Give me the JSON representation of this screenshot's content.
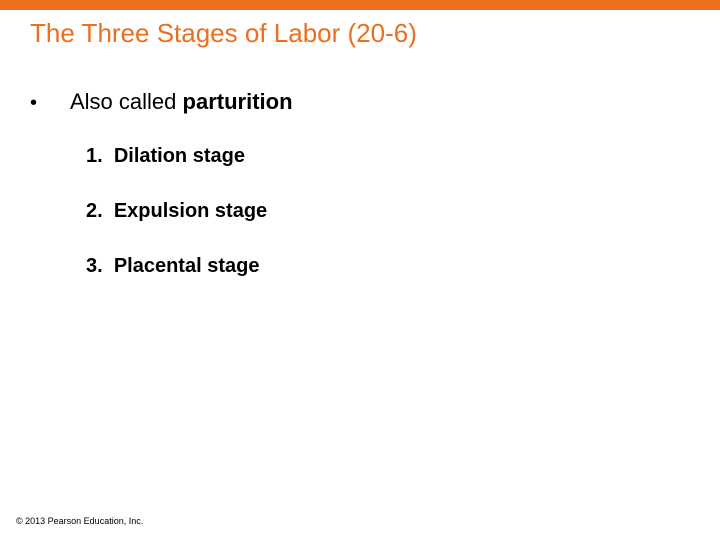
{
  "accent_color": "#ec6f1d",
  "title": {
    "text": "The Three Stages of Labor (20-6)",
    "color": "#ec6f1d",
    "fontsize": 26
  },
  "bullet": {
    "prefix": "Also called ",
    "bold": "parturition"
  },
  "items": [
    {
      "num": "1.",
      "label": "Dilation stage"
    },
    {
      "num": "2.",
      "label": "Expulsion stage"
    },
    {
      "num": "3.",
      "label": "Placental stage"
    }
  ],
  "copyright": "© 2013 Pearson Education, Inc."
}
